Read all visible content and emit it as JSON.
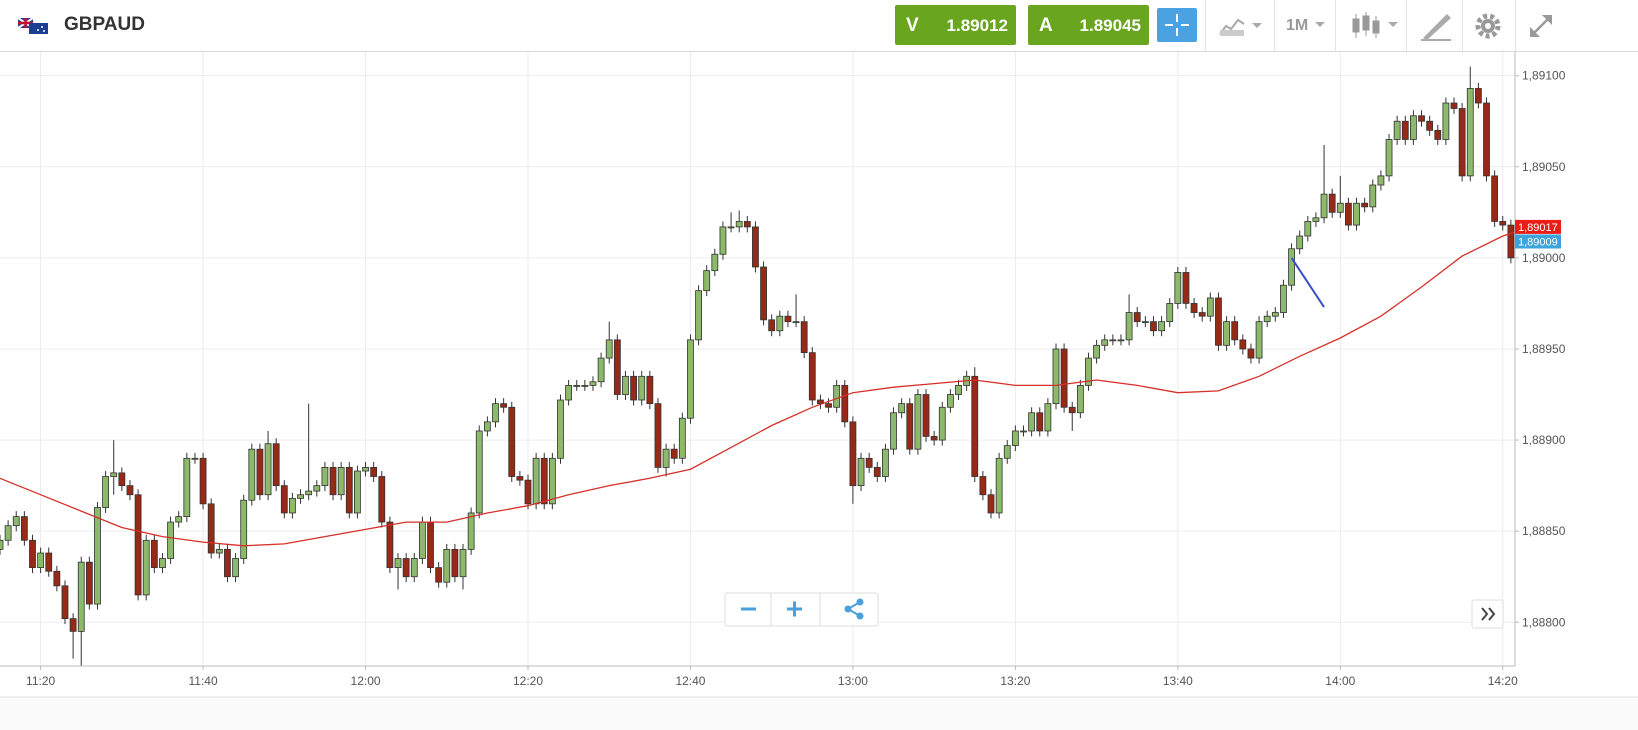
{
  "toolbar": {
    "symbol": "GBPAUD",
    "sell": {
      "label": "V",
      "price": "1.89012"
    },
    "buy": {
      "label": "A",
      "price": "1.89045"
    },
    "interval": "1M"
  },
  "chart_data": {
    "type": "candlestick",
    "up_color": "#8cb96a",
    "down_color": "#962a16",
    "grid": true,
    "x": [
      "11:15",
      "11:16",
      "11:17",
      "11:18",
      "11:19",
      "11:20",
      "11:21",
      "11:22",
      "11:23",
      "11:24",
      "11:25",
      "11:26",
      "11:27",
      "11:28",
      "11:29",
      "11:30",
      "11:31",
      "11:32",
      "11:33",
      "11:34",
      "11:35",
      "11:36",
      "11:37",
      "11:38",
      "11:39",
      "11:40",
      "11:41",
      "11:42",
      "11:43",
      "11:44",
      "11:45",
      "11:46",
      "11:47",
      "11:48",
      "11:49",
      "11:50",
      "11:51",
      "11:52",
      "11:53",
      "11:54",
      "11:55",
      "11:56",
      "11:57",
      "11:58",
      "11:59",
      "12:00",
      "12:01",
      "12:02",
      "12:03",
      "12:04",
      "12:05",
      "12:06",
      "12:07",
      "12:08",
      "12:09",
      "12:10",
      "12:11",
      "12:12",
      "12:13",
      "12:14",
      "12:15",
      "12:16",
      "12:17",
      "12:18",
      "12:19",
      "12:20",
      "12:21",
      "12:22",
      "12:23",
      "12:24",
      "12:25",
      "12:26",
      "12:27",
      "12:28",
      "12:29",
      "12:30",
      "12:31",
      "12:32",
      "12:33",
      "12:34",
      "12:35",
      "12:36",
      "12:37",
      "12:38",
      "12:39",
      "12:40",
      "12:41",
      "12:42",
      "12:43",
      "12:44",
      "12:45",
      "12:46",
      "12:47",
      "12:48",
      "12:49",
      "12:50",
      "12:51",
      "12:52",
      "12:53",
      "12:54",
      "12:55",
      "12:56",
      "12:57",
      "12:58",
      "12:59",
      "13:00",
      "13:01",
      "13:02",
      "13:03",
      "13:04",
      "13:05",
      "13:06",
      "13:07",
      "13:08",
      "13:09",
      "13:10",
      "13:11",
      "13:12",
      "13:13",
      "13:14",
      "13:15",
      "13:16",
      "13:17",
      "13:18",
      "13:19",
      "13:20",
      "13:21",
      "13:22",
      "13:23",
      "13:24",
      "13:25",
      "13:26",
      "13:27",
      "13:28",
      "13:29",
      "13:30",
      "13:31",
      "13:32",
      "13:33",
      "13:34",
      "13:35",
      "13:36",
      "13:37",
      "13:38",
      "13:39",
      "13:40",
      "13:41",
      "13:42",
      "13:43",
      "13:44",
      "13:45",
      "13:46",
      "13:47",
      "13:48",
      "13:49",
      "13:50",
      "13:51",
      "13:52",
      "13:53",
      "13:54",
      "13:55",
      "13:56",
      "13:57",
      "13:58",
      "13:59",
      "14:00",
      "14:01",
      "14:02",
      "14:03",
      "14:04",
      "14:05",
      "14:06",
      "14:07",
      "14:08",
      "14:09",
      "14:10",
      "14:11",
      "14:12",
      "14:13",
      "14:14",
      "14:15",
      "14:16",
      "14:17",
      "14:18",
      "14:19",
      "14:20",
      "14:21",
      "14:22"
    ],
    "open": [
      1.8884,
      1.88845,
      1.88853,
      1.88858,
      1.88845,
      1.8883,
      1.88838,
      1.88828,
      1.8882,
      1.88802,
      1.88795,
      1.88833,
      1.8881,
      1.88863,
      1.8888,
      1.88882,
      1.88875,
      1.8887,
      1.88815,
      1.88845,
      1.8883,
      1.88835,
      1.88855,
      1.88858,
      1.8889,
      1.8889,
      1.88865,
      1.88838,
      1.8884,
      1.88825,
      1.88835,
      1.88867,
      1.88895,
      1.8887,
      1.88898,
      1.88875,
      1.8886,
      1.88868,
      1.8887,
      1.88872,
      1.88875,
      1.88885,
      1.8887,
      1.88885,
      1.8886,
      1.88883,
      1.88885,
      1.8888,
      1.88855,
      1.8883,
      1.88835,
      1.88825,
      1.88835,
      1.88855,
      1.8883,
      1.88822,
      1.8884,
      1.88825,
      1.8884,
      1.8886,
      1.88905,
      1.8891,
      1.8892,
      1.88918,
      1.8888,
      1.88878,
      1.88865,
      1.8889,
      1.88865,
      1.8889,
      1.88922,
      1.8893,
      1.8893,
      1.8893,
      1.88932,
      1.88945,
      1.88955,
      1.88925,
      1.88935,
      1.88922,
      1.88935,
      1.8892,
      1.88885,
      1.88895,
      1.8889,
      1.88912,
      1.88955,
      1.88982,
      1.88993,
      1.89002,
      1.89017,
      1.89017,
      1.8902,
      1.89017,
      1.88995,
      1.88966,
      1.8896,
      1.88968,
      1.88965,
      1.88965,
      1.88948,
      1.88922,
      1.8892,
      1.88918,
      1.8893,
      1.8891,
      1.88875,
      1.8889,
      1.88885,
      1.8888,
      1.88895,
      1.88915,
      1.8892,
      1.88895,
      1.88925,
      1.88902,
      1.889,
      1.88918,
      1.88925,
      1.8893,
      1.88935,
      1.8888,
      1.8887,
      1.8886,
      1.8889,
      1.88897,
      1.88905,
      1.88905,
      1.88915,
      1.88905,
      1.8892,
      1.8895,
      1.88918,
      1.88915,
      1.8893,
      1.88945,
      1.88952,
      1.88955,
      1.88955,
      1.88955,
      1.8897,
      1.88965,
      1.88965,
      1.8896,
      1.88965,
      1.88975,
      1.88992,
      1.88975,
      1.8897,
      1.88968,
      1.88978,
      1.88952,
      1.88965,
      1.88955,
      1.8895,
      1.88945,
      1.88965,
      1.88968,
      1.8897,
      1.88985,
      1.89005,
      1.89012,
      1.8902,
      1.89022,
      1.89035,
      1.89025,
      1.8903,
      1.89018,
      1.8903,
      1.89028,
      1.8904,
      1.89045,
      1.89065,
      1.89075,
      1.89065,
      1.89078,
      1.89075,
      1.8907,
      1.89065,
      1.89085,
      1.89082,
      1.89045,
      1.89093,
      1.89085,
      1.89045,
      1.8902,
      1.89018,
      1.89
    ],
    "high": [
      1.88848,
      1.88856,
      1.88861,
      1.88861,
      1.88848,
      1.88841,
      1.88841,
      1.88831,
      1.88823,
      1.88805,
      1.88836,
      1.88836,
      1.88866,
      1.88883,
      1.889,
      1.88885,
      1.88878,
      1.88873,
      1.88848,
      1.88848,
      1.88838,
      1.88858,
      1.88861,
      1.88893,
      1.88893,
      1.88893,
      1.88868,
      1.88843,
      1.88843,
      1.88838,
      1.8887,
      1.88898,
      1.88898,
      1.88905,
      1.88901,
      1.88878,
      1.88871,
      1.88873,
      1.8892,
      1.88878,
      1.88888,
      1.88888,
      1.88888,
      1.88888,
      1.88886,
      1.88888,
      1.88888,
      1.88883,
      1.88858,
      1.88838,
      1.88838,
      1.88838,
      1.88858,
      1.88858,
      1.88833,
      1.88843,
      1.88843,
      1.88843,
      1.88863,
      1.88908,
      1.88913,
      1.88923,
      1.88923,
      1.88921,
      1.88883,
      1.88881,
      1.88893,
      1.88893,
      1.88893,
      1.88925,
      1.88933,
      1.88933,
      1.88933,
      1.88935,
      1.88948,
      1.88965,
      1.88958,
      1.88938,
      1.88938,
      1.88938,
      1.88938,
      1.88923,
      1.88898,
      1.88898,
      1.88915,
      1.88958,
      1.88985,
      1.88996,
      1.89005,
      1.8902,
      1.89025,
      1.89026,
      1.89023,
      1.8902,
      1.88998,
      1.88969,
      1.88971,
      1.88971,
      1.8898,
      1.88968,
      1.88951,
      1.88925,
      1.88923,
      1.88933,
      1.88933,
      1.88913,
      1.88893,
      1.88893,
      1.88888,
      1.88898,
      1.88918,
      1.88923,
      1.88923,
      1.88928,
      1.88928,
      1.88905,
      1.88921,
      1.88928,
      1.88933,
      1.88938,
      1.8894,
      1.88883,
      1.88873,
      1.88893,
      1.889,
      1.88908,
      1.88908,
      1.88918,
      1.88918,
      1.88923,
      1.88953,
      1.88953,
      1.88921,
      1.88933,
      1.88948,
      1.88955,
      1.88958,
      1.88958,
      1.88958,
      1.8898,
      1.88973,
      1.88968,
      1.88968,
      1.88968,
      1.88978,
      1.88995,
      1.88995,
      1.88978,
      1.88973,
      1.88981,
      1.88981,
      1.88968,
      1.88968,
      1.88958,
      1.88953,
      1.88968,
      1.88971,
      1.88973,
      1.88988,
      1.89008,
      1.89015,
      1.89023,
      1.89025,
      1.89062,
      1.89038,
      1.89045,
      1.89033,
      1.89033,
      1.89033,
      1.89043,
      1.89048,
      1.89068,
      1.89078,
      1.89078,
      1.89081,
      1.89081,
      1.89078,
      1.89073,
      1.89088,
      1.89088,
      1.89085,
      1.89105,
      1.89096,
      1.89088,
      1.89048,
      1.89023,
      1.89021,
      1.89005
    ],
    "low": [
      1.88837,
      1.88842,
      1.8885,
      1.88842,
      1.88827,
      1.88827,
      1.88825,
      1.88817,
      1.88799,
      1.8878,
      1.88775,
      1.88807,
      1.88807,
      1.8886,
      1.8887,
      1.88872,
      1.88867,
      1.88812,
      1.88812,
      1.88827,
      1.88827,
      1.88832,
      1.88852,
      1.88855,
      1.88887,
      1.88862,
      1.88835,
      1.88835,
      1.88822,
      1.88822,
      1.88832,
      1.88864,
      1.88867,
      1.88867,
      1.88872,
      1.88857,
      1.88857,
      1.88865,
      1.88867,
      1.88869,
      1.88872,
      1.88867,
      1.88867,
      1.88857,
      1.88857,
      1.8888,
      1.88877,
      1.88852,
      1.88827,
      1.88818,
      1.88822,
      1.88822,
      1.88832,
      1.88827,
      1.88819,
      1.88819,
      1.88822,
      1.88818,
      1.88837,
      1.88857,
      1.88902,
      1.88907,
      1.88915,
      1.88877,
      1.88875,
      1.88862,
      1.88862,
      1.88862,
      1.88862,
      1.88887,
      1.88919,
      1.88927,
      1.88927,
      1.88927,
      1.88929,
      1.88942,
      1.88922,
      1.88922,
      1.88919,
      1.88919,
      1.88917,
      1.88882,
      1.8888,
      1.88887,
      1.88887,
      1.88909,
      1.88952,
      1.88979,
      1.8899,
      1.88999,
      1.89014,
      1.89014,
      1.89014,
      1.88992,
      1.88963,
      1.88957,
      1.88957,
      1.88962,
      1.88962,
      1.88945,
      1.88919,
      1.88917,
      1.88915,
      1.88915,
      1.88907,
      1.88865,
      1.88872,
      1.88882,
      1.88877,
      1.88877,
      1.88892,
      1.88912,
      1.88892,
      1.88892,
      1.88899,
      1.88897,
      1.88897,
      1.88915,
      1.88922,
      1.88927,
      1.88877,
      1.88867,
      1.88857,
      1.88857,
      1.88887,
      1.88894,
      1.88902,
      1.88902,
      1.88902,
      1.88902,
      1.88917,
      1.88915,
      1.88905,
      1.88912,
      1.88927,
      1.88942,
      1.88949,
      1.88952,
      1.88952,
      1.88952,
      1.88962,
      1.88962,
      1.88957,
      1.88957,
      1.88962,
      1.88972,
      1.88972,
      1.88967,
      1.88965,
      1.88965,
      1.88949,
      1.88949,
      1.88952,
      1.88947,
      1.88942,
      1.88942,
      1.88962,
      1.88965,
      1.88967,
      1.88982,
      1.89002,
      1.89009,
      1.89017,
      1.89019,
      1.89022,
      1.89022,
      1.89015,
      1.89015,
      1.89025,
      1.89025,
      1.89037,
      1.89042,
      1.89062,
      1.89062,
      1.89062,
      1.89072,
      1.89067,
      1.89062,
      1.89062,
      1.89079,
      1.89042,
      1.89042,
      1.89082,
      1.89042,
      1.89017,
      1.89015,
      1.88997,
      1.88985
    ],
    "close": [
      1.88845,
      1.88853,
      1.88858,
      1.88845,
      1.8883,
      1.88838,
      1.88828,
      1.8882,
      1.88802,
      1.88795,
      1.88833,
      1.8881,
      1.88863,
      1.8888,
      1.88882,
      1.88875,
      1.8887,
      1.88815,
      1.88845,
      1.8883,
      1.88835,
      1.88855,
      1.88858,
      1.8889,
      1.8889,
      1.88865,
      1.88838,
      1.8884,
      1.88825,
      1.88835,
      1.88867,
      1.88895,
      1.8887,
      1.88898,
      1.88875,
      1.8886,
      1.88868,
      1.8887,
      1.88872,
      1.88875,
      1.88885,
      1.8887,
      1.88885,
      1.8886,
      1.88883,
      1.88885,
      1.8888,
      1.88855,
      1.8883,
      1.88835,
      1.88825,
      1.88835,
      1.88855,
      1.8883,
      1.88822,
      1.8884,
      1.88825,
      1.8884,
      1.8886,
      1.88905,
      1.8891,
      1.8892,
      1.88918,
      1.8888,
      1.88878,
      1.88865,
      1.8889,
      1.88865,
      1.8889,
      1.88922,
      1.8893,
      1.8893,
      1.8893,
      1.88932,
      1.88945,
      1.88955,
      1.88925,
      1.88935,
      1.88922,
      1.88935,
      1.8892,
      1.88885,
      1.88895,
      1.8889,
      1.88912,
      1.88955,
      1.88982,
      1.88993,
      1.89002,
      1.89017,
      1.89017,
      1.8902,
      1.89017,
      1.88995,
      1.88966,
      1.8896,
      1.88968,
      1.88965,
      1.88965,
      1.88948,
      1.88922,
      1.8892,
      1.88918,
      1.8893,
      1.8891,
      1.88875,
      1.8889,
      1.88885,
      1.8888,
      1.88895,
      1.88915,
      1.8892,
      1.88895,
      1.88925,
      1.88902,
      1.889,
      1.88918,
      1.88925,
      1.8893,
      1.88935,
      1.8888,
      1.8887,
      1.8886,
      1.8889,
      1.88897,
      1.88905,
      1.88905,
      1.88915,
      1.88905,
      1.8892,
      1.8895,
      1.88918,
      1.88915,
      1.8893,
      1.88945,
      1.88952,
      1.88955,
      1.88955,
      1.88955,
      1.8897,
      1.88965,
      1.88965,
      1.8896,
      1.88965,
      1.88975,
      1.88992,
      1.88975,
      1.8897,
      1.88968,
      1.88978,
      1.88952,
      1.88965,
      1.88955,
      1.8895,
      1.88945,
      1.88965,
      1.88968,
      1.8897,
      1.88985,
      1.89005,
      1.89012,
      1.8902,
      1.89022,
      1.89035,
      1.89025,
      1.8903,
      1.89018,
      1.8903,
      1.89028,
      1.8904,
      1.89045,
      1.89065,
      1.89075,
      1.89065,
      1.89078,
      1.89075,
      1.8907,
      1.89065,
      1.89085,
      1.89082,
      1.89045,
      1.89093,
      1.89085,
      1.89045,
      1.8902,
      1.89018,
      1.89,
      1.88995
    ],
    "ma": {
      "color": "#d6302a",
      "x": [
        "11:15",
        "11:20",
        "11:25",
        "11:30",
        "11:35",
        "11:40",
        "11:45",
        "11:50",
        "11:55",
        "12:00",
        "12:05",
        "12:10",
        "12:15",
        "12:20",
        "12:25",
        "12:30",
        "12:35",
        "12:40",
        "12:45",
        "12:50",
        "12:55",
        "13:00",
        "13:05",
        "13:10",
        "13:15",
        "13:20",
        "13:25",
        "13:30",
        "13:35",
        "13:40",
        "13:45",
        "13:50",
        "13:55",
        "14:00",
        "14:05",
        "14:10",
        "14:15",
        "14:20",
        "14:22"
      ],
      "values": [
        1.88879,
        1.8887,
        1.88861,
        1.88852,
        1.88847,
        1.88844,
        1.88842,
        1.88843,
        1.88847,
        1.88851,
        1.88855,
        1.88855,
        1.8886,
        1.88864,
        1.8887,
        1.88875,
        1.88879,
        1.88884,
        1.88896,
        1.88908,
        1.88918,
        1.88926,
        1.88929,
        1.88931,
        1.88933,
        1.8893,
        1.8893,
        1.88933,
        1.8893,
        1.88926,
        1.88927,
        1.88935,
        1.88946,
        1.88956,
        1.88968,
        1.88984,
        1.89001,
        1.89012,
        1.89015
      ]
    },
    "drawing": {
      "color": "#3b4fc4",
      "x": [
        "13:54",
        "13:58"
      ],
      "values": [
        1.89,
        1.88973
      ]
    },
    "price_markers": [
      {
        "value": 1.89017,
        "label": "1,89017",
        "color": "#ea1d17"
      },
      {
        "value": 1.89009,
        "label": "1,89009",
        "color": "#3ca4dc"
      }
    ],
    "xlim": [
      "11:15",
      "14:22"
    ],
    "xticks": [
      "11:20",
      "11:40",
      "12:00",
      "12:20",
      "12:40",
      "13:00",
      "13:20",
      "13:40",
      "14:00",
      "14:20"
    ],
    "ylim": [
      1.88776,
      1.89113
    ],
    "yticks": [
      {
        "value": 1.888,
        "label": "1,88800"
      },
      {
        "value": 1.8885,
        "label": "1,88850"
      },
      {
        "value": 1.889,
        "label": "1,88900"
      },
      {
        "value": 1.8895,
        "label": "1,88950"
      },
      {
        "value": 1.89,
        "label": "1,89000"
      },
      {
        "value": 1.8905,
        "label": "1,89050"
      },
      {
        "value": 1.891,
        "label": "1,89100"
      }
    ]
  }
}
